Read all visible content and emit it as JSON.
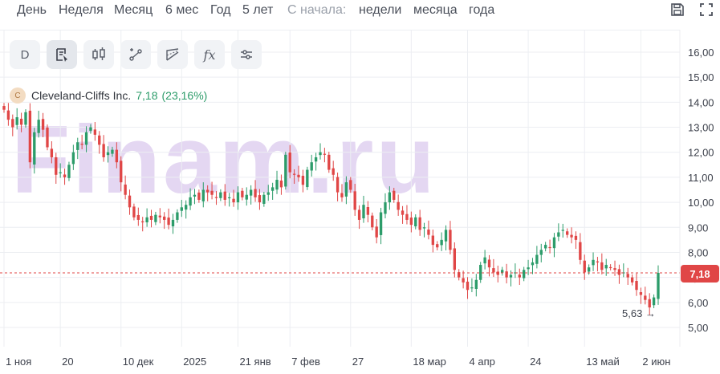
{
  "periods": {
    "day": "День",
    "week": "Неделя",
    "month": "Месяц",
    "six_months": "6 мес",
    "year": "Год",
    "five_years": "5 лет",
    "since_label": "С начала:",
    "since_week": "недели",
    "since_month": "месяца",
    "since_year": "года"
  },
  "icons": {
    "save": "save-icon",
    "fullscreen": "fullscreen-icon"
  },
  "toolbar": {
    "d_label": "D",
    "fx_label": "fx"
  },
  "legend": {
    "logo_letter": "C",
    "name": "Cleveland-Cliffs Inc.",
    "price": "7,18",
    "change": "(23,16%)"
  },
  "watermark": "Finam.ru",
  "price_tag": "7,18",
  "min_label": "5,63 →",
  "colors": {
    "up": "#2c9c6a",
    "down": "#e04646",
    "price_line": "#e04646",
    "grid": "#eceef2"
  },
  "chart_data": {
    "type": "candlestick",
    "title": "Cleveland-Cliffs Inc.",
    "xlabel": "",
    "ylabel": "",
    "ylim": [
      4.5,
      16.5
    ],
    "yticks": [
      "16,00",
      "15,00",
      "14,00",
      "13,00",
      "12,00",
      "11,00",
      "10,00",
      "9,00",
      "8,00",
      "7,00",
      "6,00",
      "5,00"
    ],
    "yticks_values": [
      16,
      15,
      14,
      13,
      12,
      11,
      10,
      9,
      8,
      7,
      6,
      5
    ],
    "xticks": [
      {
        "label": "1 ноя",
        "index": 0
      },
      {
        "label": "20",
        "index": 13
      },
      {
        "label": "10 дек",
        "index": 27
      },
      {
        "label": "2025",
        "index": 41
      },
      {
        "label": "21 янв",
        "index": 54
      },
      {
        "label": "7 фев",
        "index": 66
      },
      {
        "label": "27",
        "index": 80
      },
      {
        "label": "18 мар",
        "index": 94
      },
      {
        "label": "4 апр",
        "index": 107
      },
      {
        "label": "24",
        "index": 121
      },
      {
        "label": "13 май",
        "index": 134
      },
      {
        "label": "2 июн",
        "index": 147
      }
    ],
    "last_price": 7.18,
    "min_marker": 5.63,
    "closes": [
      13.7,
      13.3,
      13.0,
      13.4,
      13.1,
      13.6,
      11.6,
      12.8,
      13.3,
      12.9,
      12.2,
      11.8,
      11.1,
      11.2,
      11.0,
      11.5,
      12.0,
      12.4,
      12.3,
      12.8,
      13.0,
      12.7,
      12.3,
      11.8,
      12.0,
      12.1,
      11.6,
      10.8,
      10.3,
      9.8,
      9.4,
      9.3,
      9.2,
      9.4,
      9.3,
      9.5,
      9.4,
      9.3,
      9.1,
      9.3,
      9.6,
      9.8,
      9.9,
      10.2,
      10.3,
      10.1,
      10.5,
      10.4,
      10.3,
      10.2,
      10.4,
      10.1,
      10.2,
      10.0,
      10.4,
      10.2,
      10.3,
      10.5,
      10.2,
      10.0,
      10.3,
      10.4,
      10.6,
      10.9,
      10.6,
      11.9,
      11.2,
      11.1,
      11.0,
      10.7,
      11.3,
      11.6,
      11.8,
      12.0,
      11.9,
      11.3,
      11.1,
      10.4,
      10.2,
      10.8,
      10.5,
      9.7,
      9.3,
      9.9,
      9.5,
      9.0,
      8.6,
      9.6,
      10.0,
      10.4,
      10.1,
      9.7,
      9.5,
      9.3,
      9.1,
      9.4,
      8.9,
      9.0,
      8.7,
      8.3,
      8.2,
      8.5,
      8.9,
      8.1,
      7.3,
      7.0,
      6.8,
      6.5,
      6.6,
      6.9,
      7.5,
      7.8,
      7.4,
      7.2,
      7.1,
      7.3,
      7.0,
      7.1,
      7.2,
      7.0,
      7.3,
      7.4,
      7.6,
      7.9,
      8.1,
      8.3,
      8.2,
      8.6,
      8.8,
      8.9,
      8.7,
      8.6,
      8.5,
      7.7,
      7.2,
      7.4,
      7.7,
      7.6,
      7.3,
      7.5,
      7.4,
      7.3,
      7.1,
      7.2,
      7.0,
      6.8,
      6.5,
      6.3,
      6.1,
      5.8,
      6.2,
      7.18
    ]
  }
}
